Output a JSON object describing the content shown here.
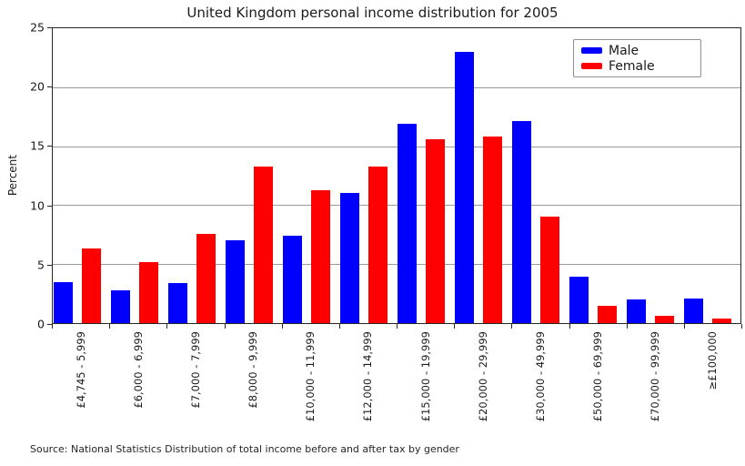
{
  "source": "Source: National Statistics Distribution of total income before and after tax by gender",
  "chart_data": {
    "type": "bar",
    "title": "United Kingdom personal income distribution for 2005",
    "xlabel": "",
    "ylabel": "Percent",
    "ylim": [
      0,
      25
    ],
    "yticks": [
      0,
      5,
      10,
      15,
      20,
      25
    ],
    "grid": true,
    "legend_position": "upper right",
    "categories": [
      "£4,745 - 5,999",
      "£6,000 - 6,999",
      "£7,000 - 7,999",
      "£8,000 - 9,999",
      "£10,000 - 11,999",
      "£12,000 - 14,999",
      "£15,000 - 19,999",
      "£20,000 - 29,999",
      "£30,000 - 49,999",
      "£50,000 - 69,999",
      "£70,000 - 99,999",
      "≥£100,000"
    ],
    "series": [
      {
        "name": "Male",
        "color": "#0000ff",
        "values": [
          3.5,
          2.8,
          3.4,
          7.0,
          7.4,
          11.0,
          16.9,
          23.0,
          17.1,
          3.9,
          2.0,
          2.1
        ]
      },
      {
        "name": "Female",
        "color": "#ff0000",
        "values": [
          6.3,
          5.2,
          7.6,
          13.3,
          11.3,
          13.3,
          15.6,
          15.8,
          9.0,
          1.5,
          0.6,
          0.4
        ]
      }
    ],
    "colors": {
      "grid": "#9b9b9b",
      "spine": "#262626",
      "background": "#ffffff"
    }
  }
}
